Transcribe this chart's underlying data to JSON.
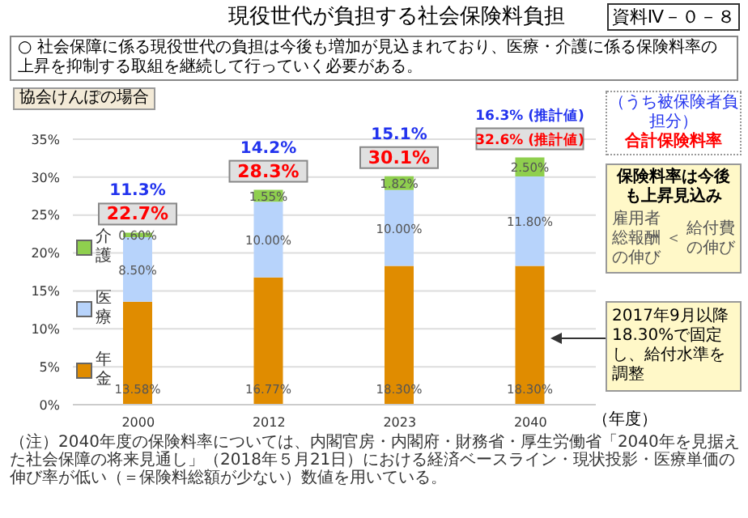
{
  "chart_data": {
    "type": "bar",
    "stacked": true,
    "title": "現役世代が負担する社会保険料負担",
    "subtitle": "○ 社会保障に係る現役世代の負担は今後も増加が見込まれており、医療・介護に係る保険料率の上昇を抑制する取組を継続して行っていく必要がある。",
    "xlabel": "（年度）",
    "categories": [
      "2000",
      "2012",
      "2023",
      "2040"
    ],
    "series": [
      {
        "name": "年金",
        "color": "#e08c00",
        "values": [
          13.58,
          16.77,
          18.3,
          18.3
        ],
        "value_labels": [
          "13.58%",
          "16.77%",
          "18.30%",
          "18.30%"
        ]
      },
      {
        "name": "医療",
        "color": "#b7d3fb",
        "values": [
          8.5,
          10.0,
          10.0,
          11.8
        ],
        "value_labels": [
          "8.50%",
          "10.00%",
          "10.00%",
          "11.80%"
        ]
      },
      {
        "name": "介護",
        "color": "#8fcf4e",
        "values": [
          0.6,
          1.55,
          1.82,
          2.5
        ],
        "value_labels": [
          "0.60%",
          "1.55%",
          "1.82%",
          "2.50%"
        ]
      }
    ],
    "totals": [
      "22.7%",
      "28.3%",
      "30.1%",
      "32.6% (推計値)"
    ],
    "ylim": [
      0,
      35
    ],
    "yticks": [
      {
        "value": 0,
        "label": "0%"
      },
      {
        "value": 5,
        "label": "5%"
      },
      {
        "value": 10,
        "label": "10%"
      },
      {
        "value": 15,
        "label": "15%"
      },
      {
        "value": 20,
        "label": "20%"
      },
      {
        "value": 25,
        "label": "25%"
      },
      {
        "value": 30,
        "label": "30%"
      },
      {
        "value": 35,
        "label": "35%"
      }
    ],
    "grid": "y",
    "legend": "left",
    "annotations": [
      "11.3%",
      "14.2%",
      "15.1%",
      "16.3% (推計値)",
      "資料Ⅳ－０－８",
      "協会けんぽの場合",
      "（うち被保険者負担分）",
      "合計保険料率",
      "保険料率は今後も上昇見込み",
      "雇用者総報酬の伸び",
      "＜",
      "給付費の伸び",
      "2017年9月以降18.30%で固定し、給付水準を調整",
      "（注）2040年度の保険料率については、内閣官房・内閣府・財務省・厚生労働省「2040年を見据えた社会保障の将来見通し」（2018年５月21日）における経済ベースライン・現状投影・医療単価の伸び率が低い（＝保険料総額が少ない）数値を用いている。"
    ]
  }
}
